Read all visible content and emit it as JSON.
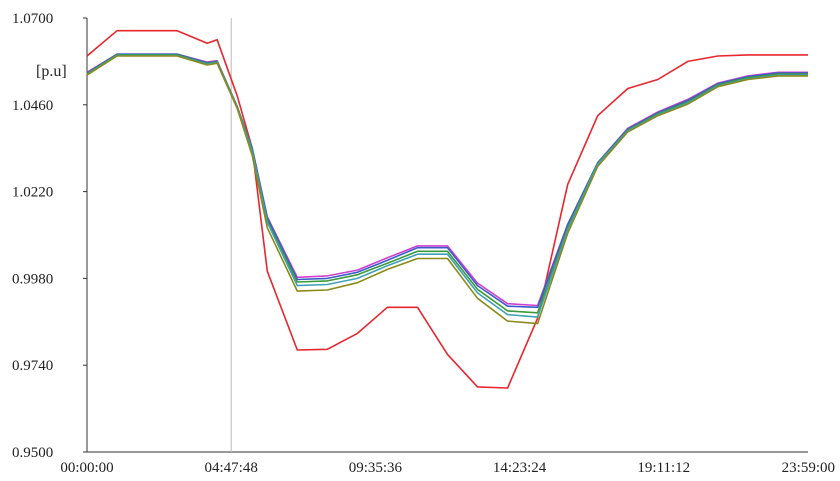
{
  "chart_data": {
    "type": "line",
    "ylabel": "[p.u]",
    "ylim": [
      0.95,
      1.07
    ],
    "y_ticks": [
      "0.9500",
      "0.9740",
      "0.9980",
      "1.0220",
      "1.0460",
      "1.0700"
    ],
    "x_tick_labels": [
      "00:00:00",
      "04:47:48",
      "09:35:36",
      "14:23:24",
      "19:11:12",
      "23:59:00"
    ],
    "xlim": [
      0,
      24
    ],
    "grid": false,
    "marker_line_x": "04:47:48",
    "x": [
      0,
      1,
      2,
      3,
      4,
      4.33,
      5,
      5.5,
      6,
      7,
      8,
      9,
      10,
      11,
      12,
      13,
      14,
      15,
      16,
      17,
      18,
      19,
      20,
      21,
      22,
      23,
      24
    ],
    "series": [
      {
        "color": "#e8262d",
        "values": [
          1.0595,
          1.0665,
          1.0665,
          1.0665,
          1.063,
          1.064,
          1.0485,
          1.034,
          1.0,
          0.9782,
          0.9784,
          0.9828,
          0.99,
          0.99,
          0.977,
          0.968,
          0.9677,
          0.987,
          1.024,
          1.043,
          1.0505,
          1.053,
          1.058,
          1.0595,
          1.0598,
          1.0598,
          1.0598
        ]
      },
      {
        "color": "#d040d0",
        "values": [
          1.055,
          1.06,
          1.06,
          1.06,
          1.0578,
          1.0582,
          1.0455,
          1.034,
          1.015,
          0.9983,
          0.9987,
          1.0003,
          1.0037,
          1.007,
          1.007,
          0.9967,
          0.991,
          0.9905,
          1.013,
          1.03,
          1.0395,
          1.044,
          1.0475,
          1.052,
          1.054,
          1.055,
          1.055
        ]
      },
      {
        "color": "#3a5ec8",
        "values": [
          1.0548,
          1.06,
          1.06,
          1.06,
          1.0576,
          1.058,
          1.0455,
          1.034,
          1.0148,
          0.9977,
          0.998,
          0.9997,
          1.003,
          1.0065,
          1.0065,
          0.996,
          0.9903,
          0.99,
          1.0128,
          1.03,
          1.0393,
          1.0438,
          1.0472,
          1.0518,
          1.0538,
          1.0548,
          1.0548
        ]
      },
      {
        "color": "#3a9a3a",
        "values": [
          1.0546,
          1.0598,
          1.0598,
          1.0598,
          1.0574,
          1.0579,
          1.0455,
          1.0335,
          1.014,
          0.997,
          0.9973,
          0.999,
          1.0022,
          1.0055,
          1.0055,
          0.995,
          0.989,
          0.9885,
          1.012,
          1.0298,
          1.039,
          1.0435,
          1.0468,
          1.0515,
          1.0535,
          1.0545,
          1.0545
        ]
      },
      {
        "color": "#3fa0b8",
        "values": [
          1.0544,
          1.0596,
          1.0596,
          1.0596,
          1.0572,
          1.0577,
          1.0453,
          1.033,
          1.0135,
          0.996,
          0.9963,
          0.998,
          1.0015,
          1.0047,
          1.0047,
          0.994,
          0.988,
          0.9873,
          1.0115,
          1.0296,
          1.0388,
          1.0432,
          1.0465,
          1.0512,
          1.0532,
          1.0542,
          1.0542
        ]
      },
      {
        "color": "#8a8a1a",
        "values": [
          1.0542,
          1.0595,
          1.0595,
          1.0595,
          1.057,
          1.0575,
          1.045,
          1.032,
          1.012,
          0.9945,
          0.9948,
          0.9968,
          1.0005,
          1.0035,
          1.0035,
          0.9925,
          0.9862,
          0.9855,
          1.0105,
          1.029,
          1.0385,
          1.043,
          1.0462,
          1.051,
          1.053,
          1.054,
          1.054
        ]
      }
    ]
  }
}
